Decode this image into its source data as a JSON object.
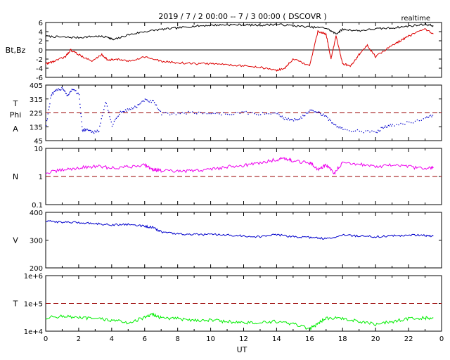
{
  "header": {
    "title": "2019 / 7 / 2   00:00 -- 7 / 3   00:00 ( DSCOVR )",
    "mode": "realtime"
  },
  "xaxis": {
    "label": "UT",
    "ticks": [
      "0",
      "2",
      "4",
      "6",
      "8",
      "10",
      "12",
      "14",
      "16",
      "18",
      "20",
      "22",
      "0"
    ]
  },
  "colors": {
    "bt": "#000000",
    "bz": "#dd0000",
    "phi": "#0000cc",
    "density": "#ee00ee",
    "speed": "#0000cc",
    "temperature": "#00ee00",
    "reference": "#990000"
  },
  "chart_data": [
    {
      "type": "line",
      "panel": "magnetic-field",
      "ylabel": "Bt,Bz",
      "ylim": [
        -6,
        6
      ],
      "yticks": [
        "6",
        "4",
        "2",
        "0",
        "-2",
        "-4",
        "-6"
      ],
      "reference_line": 0,
      "series": [
        {
          "name": "Bt",
          "x": [
            0,
            1,
            2,
            3,
            3.8,
            4.1,
            5,
            6,
            7,
            8,
            9,
            10,
            11,
            12,
            13,
            14,
            15,
            16,
            17,
            17.6,
            18,
            19,
            20,
            21,
            22,
            23,
            23.5
          ],
          "values": [
            3,
            2.8,
            2.7,
            3,
            2.8,
            2.2,
            3.3,
            4,
            4.5,
            4.8,
            5.2,
            5.4,
            5.5,
            5.5,
            5.4,
            5.6,
            5.3,
            5,
            4.8,
            3.5,
            4.5,
            4.2,
            4.6,
            4.8,
            5.2,
            5.6,
            5.3
          ]
        },
        {
          "name": "Bz",
          "x": [
            0,
            0.5,
            1.2,
            1.5,
            2,
            2.8,
            3.4,
            3.8,
            4.3,
            5,
            6,
            7,
            8,
            9,
            10,
            11,
            12,
            13,
            14,
            14.5,
            15,
            16,
            16.5,
            17,
            17.3,
            17.6,
            18,
            18.5,
            19,
            19.5,
            20,
            21,
            21.5,
            22,
            23,
            23.5
          ],
          "values": [
            -3,
            -2.5,
            -1.5,
            0,
            -1,
            -2.5,
            -1,
            -2.3,
            -2,
            -2.5,
            -1.5,
            -2.5,
            -2.8,
            -3,
            -3,
            -3.2,
            -3.5,
            -3.8,
            -4.5,
            -4,
            -2,
            -3.5,
            4,
            3.5,
            -2,
            3,
            -3,
            -3.5,
            -1,
            1,
            -1.5,
            1,
            2,
            3,
            4.5,
            3.5
          ]
        }
      ]
    },
    {
      "type": "scatter",
      "panel": "phi-angle",
      "ylabel": "T Phi A",
      "ylabel_lines": [
        "T",
        "Phi",
        "A"
      ],
      "ylim": [
        45,
        405
      ],
      "yticks": [
        "405",
        "315",
        "225",
        "135",
        "45"
      ],
      "reference_line": 225,
      "series": [
        {
          "name": "Phi",
          "x": [
            0,
            0.3,
            0.6,
            1,
            1.3,
            1.6,
            2,
            2.2,
            2.4,
            2.8,
            3.2,
            3.6,
            4,
            4.5,
            5,
            5.5,
            6,
            6.5,
            7,
            8,
            9,
            10,
            11,
            12,
            13,
            14,
            14.5,
            15,
            15.5,
            16,
            16.5,
            17,
            17.5,
            18,
            19,
            20,
            20.5,
            21,
            22,
            23,
            23.5
          ],
          "values": [
            150,
            340,
            370,
            390,
            340,
            380,
            350,
            110,
            120,
            100,
            115,
            300,
            150,
            230,
            250,
            270,
            310,
            300,
            220,
            225,
            230,
            225,
            220,
            230,
            220,
            225,
            190,
            180,
            200,
            240,
            230,
            200,
            150,
            120,
            110,
            100,
            140,
            150,
            165,
            190,
            215
          ]
        }
      ]
    },
    {
      "type": "line",
      "panel": "density",
      "ylabel": "N",
      "yscale": "log",
      "ylim": [
        0.1,
        10
      ],
      "yticks": [
        "10",
        "1",
        "0.1"
      ],
      "reference_line": 1,
      "series": [
        {
          "name": "N",
          "x": [
            0,
            1,
            2,
            3,
            4,
            5,
            6,
            6.5,
            7,
            8,
            9,
            10,
            11,
            12,
            13,
            14,
            14.5,
            15,
            16,
            16.5,
            17,
            17.5,
            18,
            19,
            20,
            21,
            22,
            23,
            23.5
          ],
          "values": [
            1.3,
            1.7,
            2,
            2.3,
            2,
            2.2,
            2.6,
            1.8,
            1.6,
            1.5,
            1.6,
            1.8,
            2.2,
            2.5,
            3,
            4,
            4.5,
            3.5,
            3,
            1.8,
            2.5,
            1.2,
            3,
            2.8,
            2.2,
            2.5,
            2.2,
            1.9,
            2
          ]
        }
      ]
    },
    {
      "type": "line",
      "panel": "speed",
      "ylabel": "V",
      "ylim": [
        200,
        400
      ],
      "yticks": [
        "400",
        "300",
        "200"
      ],
      "series": [
        {
          "name": "V",
          "x": [
            0,
            1,
            2,
            3,
            4,
            5,
            6,
            6.5,
            7,
            8,
            9,
            10,
            11,
            12,
            13,
            14,
            15,
            16,
            17,
            18,
            19,
            20,
            21,
            22,
            23,
            23.5
          ],
          "values": [
            368,
            365,
            363,
            360,
            355,
            357,
            350,
            345,
            330,
            322,
            320,
            320,
            318,
            315,
            312,
            320,
            312,
            310,
            305,
            318,
            315,
            312,
            315,
            318,
            317,
            315
          ]
        }
      ]
    },
    {
      "type": "line",
      "panel": "temperature",
      "ylabel": "T",
      "yscale": "log",
      "ylim": [
        10000,
        1000000
      ],
      "yticks": [
        "1e+6",
        "1e+5",
        "1e+4"
      ],
      "reference_line": 100000,
      "series": [
        {
          "name": "T",
          "x": [
            0,
            1,
            2,
            3,
            4,
            5,
            6,
            6.5,
            7,
            8,
            9,
            10,
            11,
            12,
            13,
            14,
            15,
            16,
            16.5,
            17,
            18,
            19,
            20,
            21,
            22,
            23,
            23.5
          ],
          "values": [
            30000,
            35000,
            30000,
            28000,
            25000,
            20000,
            30000,
            40000,
            30000,
            28000,
            25000,
            25000,
            22000,
            20000,
            20000,
            22000,
            18000,
            12000,
            18000,
            30000,
            28000,
            22000,
            18000,
            22000,
            28000,
            30000,
            30000
          ]
        }
      ]
    }
  ]
}
